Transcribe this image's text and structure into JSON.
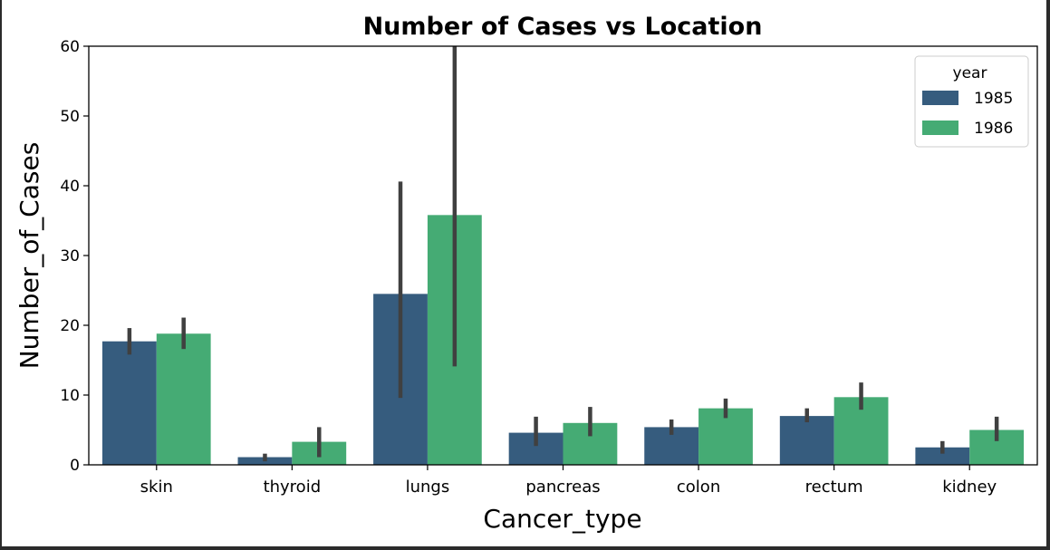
{
  "chart_data": {
    "type": "bar",
    "title": "Number of Cases vs Location",
    "xlabel": "Cancer_type",
    "ylabel": "Number_of_Cases",
    "ylim": [
      0,
      60
    ],
    "yticks": [
      0,
      10,
      20,
      30,
      40,
      50,
      60
    ],
    "categories": [
      "skin",
      "thyroid",
      "lungs",
      "pancreas",
      "colon",
      "rectum",
      "kidney"
    ],
    "legend": {
      "title": "year",
      "placement": "top-right"
    },
    "grid": false,
    "series": [
      {
        "name": "1985",
        "color": "#365c7e",
        "values": [
          17.7,
          1.1,
          24.5,
          4.6,
          5.4,
          7.0,
          2.5
        ],
        "error": [
          [
            15.8,
            19.6
          ],
          [
            0.5,
            1.6
          ],
          [
            9.6,
            40.6
          ],
          [
            2.7,
            6.9
          ],
          [
            4.3,
            6.5
          ],
          [
            6.1,
            8.1
          ],
          [
            1.6,
            3.4
          ]
        ]
      },
      {
        "name": "1986",
        "color": "#45ab74",
        "values": [
          18.8,
          3.3,
          35.8,
          6.0,
          8.1,
          9.7,
          5.0
        ],
        "error": [
          [
            16.6,
            21.1
          ],
          [
            1.1,
            5.4
          ],
          [
            14.1,
            60.0
          ],
          [
            4.1,
            8.3
          ],
          [
            6.7,
            9.5
          ],
          [
            7.9,
            11.8
          ],
          [
            3.4,
            6.9
          ]
        ]
      }
    ]
  }
}
